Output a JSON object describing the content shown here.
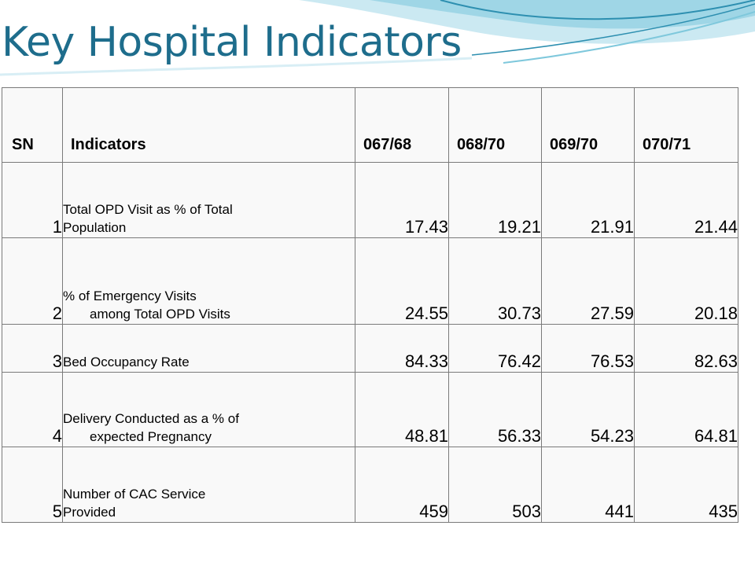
{
  "title": "Key Hospital Indicators",
  "colors": {
    "title": "#1e6d8c",
    "wave_light": "#cbe9f2",
    "wave_mid": "#7fc8dc",
    "wave_dark": "#2d8fb0"
  },
  "table": {
    "headers": [
      "SN",
      "Indicators",
      "067/68",
      "068/70",
      "069/70",
      "070/71"
    ],
    "rows": [
      {
        "sn": "1",
        "line1": "Total OPD Visit as % of Total",
        "line2": "Population",
        "values": [
          "17.43",
          "19.21",
          "21.91",
          "21.44"
        ]
      },
      {
        "sn": "2",
        "line1": "% of Emergency Visits",
        "line2": "among Total OPD Visits",
        "values": [
          "24.55",
          "30.73",
          "27.59",
          "20.18"
        ]
      },
      {
        "sn": "3",
        "line1": "",
        "line2": "Bed Occupancy Rate",
        "values": [
          "84.33",
          "76.42",
          "76.53",
          "82.63"
        ]
      },
      {
        "sn": "4",
        "line1": "Delivery Conducted as a % of",
        "line2": "expected Pregnancy",
        "values": [
          "48.81",
          "56.33",
          "54.23",
          "64.81"
        ]
      },
      {
        "sn": "5",
        "line1": "Number of CAC Service",
        "line2": "Provided",
        "values": [
          "459",
          "503",
          "441",
          "435"
        ]
      }
    ]
  }
}
